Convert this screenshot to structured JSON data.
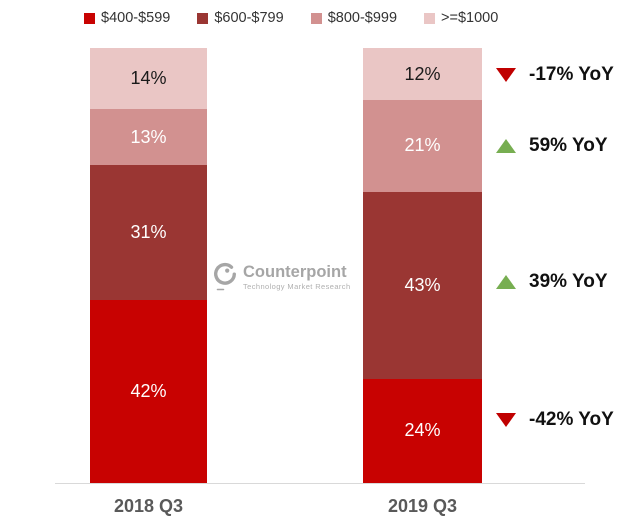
{
  "chart_data": {
    "type": "bar",
    "stacked": true,
    "unit": "%",
    "title": "",
    "categories": [
      "2018 Q3",
      "2019 Q3"
    ],
    "series": [
      {
        "name": "$400-$599",
        "color": "#c80201",
        "label_color": "#ffffff",
        "values": [
          42,
          24
        ]
      },
      {
        "name": "$600-$799",
        "color": "#9a3633",
        "label_color": "#ffffff",
        "values": [
          31,
          43
        ]
      },
      {
        "name": "$800-$999",
        "color": "#d29190",
        "label_color": "#ffffff",
        "values": [
          13,
          21
        ]
      },
      {
        "name": ">=$1000",
        "color": "#eac6c5",
        "label_color": "#1a1a1a",
        "values": [
          14,
          12
        ]
      }
    ],
    "segment_labels": {
      "col0": [
        "42%",
        "31%",
        "13%",
        "14%"
      ],
      "col1": [
        "24%",
        "43%",
        "21%",
        "12%"
      ]
    },
    "annotations": [
      {
        "label": "-17% YoY",
        "trend": "down",
        "color": "#c00000"
      },
      {
        "label": "59% YoY",
        "trend": "up",
        "color": "#77ae51"
      },
      {
        "label": "39% YoY",
        "trend": "up",
        "color": "#77ae51"
      },
      {
        "label": "-42% YoY",
        "trend": "down",
        "color": "#c00000"
      }
    ],
    "legend_position": "top",
    "grid": false,
    "axis_line_color": "#d9d9d9",
    "ylim": [
      0,
      100
    ]
  },
  "watermark": {
    "brand": "Counterpoint",
    "tagline": "Technology Market Research"
  }
}
